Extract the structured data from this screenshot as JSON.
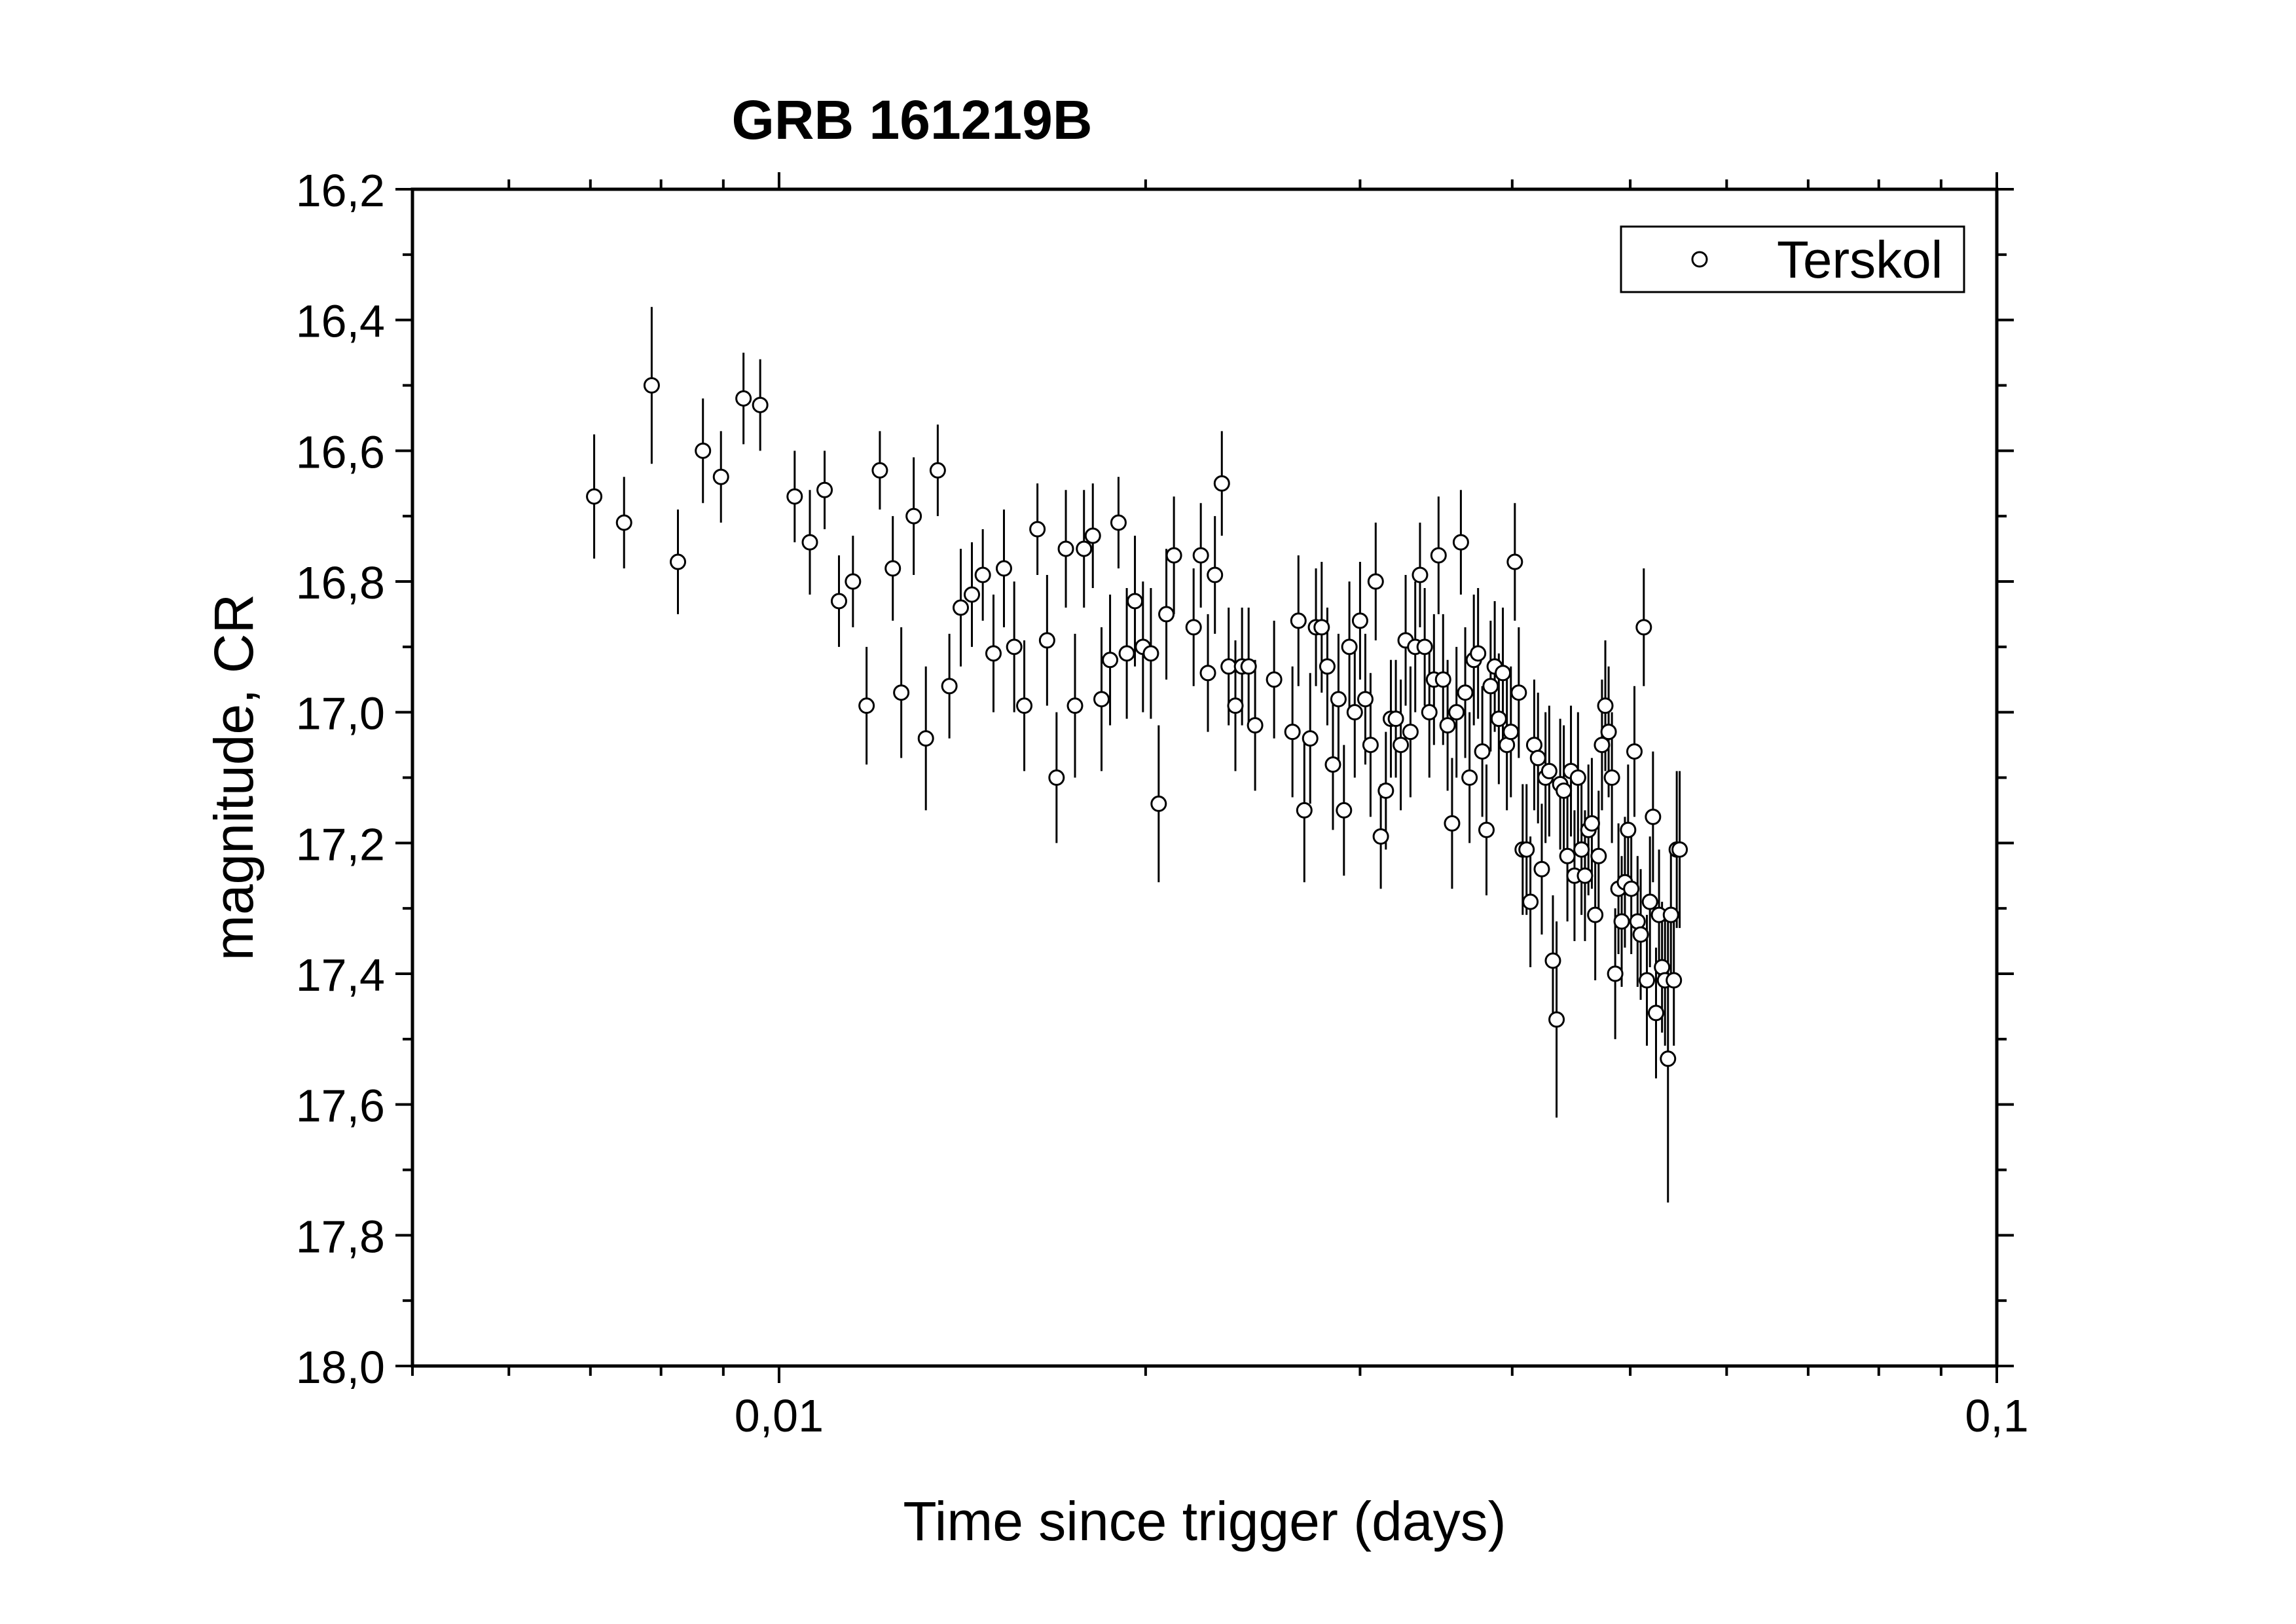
{
  "chart_data": {
    "type": "scatter",
    "title": "GRB 161219B",
    "xlabel": "Time since trigger (days)",
    "ylabel": "magnitude, CR",
    "x_scale": "log",
    "xlim": [
      0.005,
      0.1
    ],
    "ylim": [
      16.2,
      18.0
    ],
    "y_inverted": true,
    "x_ticks": [
      "0,01",
      "0,1"
    ],
    "y_ticks": [
      "16,2",
      "16,4",
      "16,6",
      "16,8",
      "17,0",
      "17,2",
      "17,4",
      "17,6",
      "17,8",
      "18,0"
    ],
    "grid": false,
    "legend_position": "top-right",
    "series": [
      {
        "name": "Terskol",
        "marker": "open-circle",
        "color": "#000000",
        "points": [
          [
            0.00705,
            16.67,
            0.095
          ],
          [
            0.00746,
            16.71,
            0.07
          ],
          [
            0.00786,
            16.5,
            0.12
          ],
          [
            0.00826,
            16.77,
            0.08
          ],
          [
            0.00866,
            16.6,
            0.08
          ],
          [
            0.00896,
            16.64,
            0.07
          ],
          [
            0.00935,
            16.52,
            0.07
          ],
          [
            0.00965,
            16.53,
            0.07
          ],
          [
            0.0103,
            16.67,
            0.07
          ],
          [
            0.0106,
            16.74,
            0.08
          ],
          [
            0.0109,
            16.66,
            0.06
          ],
          [
            0.0112,
            16.83,
            0.07
          ],
          [
            0.0115,
            16.8,
            0.07
          ],
          [
            0.0118,
            16.99,
            0.09
          ],
          [
            0.0121,
            16.63,
            0.06
          ],
          [
            0.0124,
            16.78,
            0.08
          ],
          [
            0.0126,
            16.97,
            0.1
          ],
          [
            0.0129,
            16.7,
            0.09
          ],
          [
            0.0132,
            17.04,
            0.11
          ],
          [
            0.0135,
            16.63,
            0.07
          ],
          [
            0.0138,
            16.96,
            0.08
          ],
          [
            0.0141,
            16.84,
            0.09
          ],
          [
            0.0144,
            16.82,
            0.08
          ],
          [
            0.0147,
            16.79,
            0.07
          ],
          [
            0.015,
            16.91,
            0.09
          ],
          [
            0.0153,
            16.78,
            0.09
          ],
          [
            0.0156,
            16.9,
            0.1
          ],
          [
            0.0159,
            16.99,
            0.1
          ],
          [
            0.0163,
            16.72,
            0.07
          ],
          [
            0.0166,
            16.89,
            0.1
          ],
          [
            0.0169,
            17.1,
            0.1
          ],
          [
            0.0172,
            16.75,
            0.09
          ],
          [
            0.0175,
            16.99,
            0.11
          ],
          [
            0.0178,
            16.75,
            0.09
          ],
          [
            0.0181,
            16.73,
            0.08
          ],
          [
            0.0184,
            16.98,
            0.11
          ],
          [
            0.0187,
            16.92,
            0.1
          ],
          [
            0.019,
            16.71,
            0.07
          ],
          [
            0.0193,
            16.91,
            0.1
          ],
          [
            0.0196,
            16.83,
            0.1
          ],
          [
            0.0199,
            16.9,
            0.1
          ],
          [
            0.0202,
            16.91,
            0.1
          ],
          [
            0.0205,
            17.14,
            0.12
          ],
          [
            0.0208,
            16.85,
            0.1
          ],
          [
            0.0211,
            16.76,
            0.09
          ],
          [
            0.0219,
            16.87,
            0.09
          ],
          [
            0.0222,
            16.76,
            0.08
          ],
          [
            0.0225,
            16.94,
            0.09
          ],
          [
            0.0228,
            16.79,
            0.09
          ],
          [
            0.0231,
            16.65,
            0.08
          ],
          [
            0.0234,
            16.93,
            0.09
          ],
          [
            0.0237,
            16.99,
            0.1
          ],
          [
            0.024,
            16.93,
            0.09
          ],
          [
            0.0243,
            16.93,
            0.09
          ],
          [
            0.0246,
            17.02,
            0.1
          ],
          [
            0.0255,
            16.95,
            0.09
          ],
          [
            0.0264,
            17.03,
            0.1
          ],
          [
            0.0267,
            16.86,
            0.1
          ],
          [
            0.027,
            17.15,
            0.11
          ],
          [
            0.0273,
            17.04,
            0.1
          ],
          [
            0.0276,
            16.87,
            0.09
          ],
          [
            0.0279,
            16.87,
            0.1
          ],
          [
            0.0282,
            16.93,
            0.09
          ],
          [
            0.0285,
            17.08,
            0.1
          ],
          [
            0.0288,
            16.98,
            0.1
          ],
          [
            0.0291,
            17.15,
            0.1
          ],
          [
            0.0294,
            16.9,
            0.1
          ],
          [
            0.0297,
            17.0,
            0.1
          ],
          [
            0.03,
            16.86,
            0.09
          ],
          [
            0.0303,
            16.98,
            0.1
          ],
          [
            0.0306,
            17.05,
            0.11
          ],
          [
            0.0309,
            16.8,
            0.09
          ],
          [
            0.0312,
            17.19,
            0.08
          ],
          [
            0.0315,
            17.12,
            0.09
          ],
          [
            0.0318,
            17.01,
            0.09
          ],
          [
            0.0321,
            17.01,
            0.09
          ],
          [
            0.0324,
            17.05,
            0.1
          ],
          [
            0.0327,
            16.89,
            0.1
          ],
          [
            0.033,
            17.03,
            0.1
          ],
          [
            0.0333,
            16.9,
            0.1
          ],
          [
            0.0336,
            16.79,
            0.08
          ],
          [
            0.0339,
            16.9,
            0.09
          ],
          [
            0.0342,
            17.0,
            0.1
          ],
          [
            0.0345,
            16.95,
            0.1
          ],
          [
            0.0348,
            16.76,
            0.09
          ],
          [
            0.0351,
            16.95,
            0.1
          ],
          [
            0.0354,
            17.02,
            0.1
          ],
          [
            0.0357,
            17.17,
            0.1
          ],
          [
            0.036,
            17.0,
            0.1
          ],
          [
            0.0363,
            16.74,
            0.08
          ],
          [
            0.0366,
            16.97,
            0.1
          ],
          [
            0.0369,
            17.1,
            0.1
          ],
          [
            0.0372,
            16.92,
            0.1
          ],
          [
            0.0375,
            16.91,
            0.1
          ],
          [
            0.0378,
            17.06,
            0.1
          ],
          [
            0.0381,
            17.18,
            0.1
          ],
          [
            0.0384,
            16.96,
            0.1
          ],
          [
            0.0387,
            16.93,
            0.1
          ],
          [
            0.039,
            17.01,
            0.1
          ],
          [
            0.0393,
            16.94,
            0.1
          ],
          [
            0.0396,
            17.05,
            0.1
          ],
          [
            0.0399,
            17.03,
            0.1
          ],
          [
            0.0402,
            16.77,
            0.09
          ],
          [
            0.0405,
            16.97,
            0.1
          ],
          [
            0.0408,
            17.21,
            0.1
          ],
          [
            0.0411,
            17.21,
            0.1
          ],
          [
            0.0414,
            17.29,
            0.1
          ],
          [
            0.0417,
            17.05,
            0.1
          ],
          [
            0.042,
            17.07,
            0.1
          ],
          [
            0.0423,
            17.24,
            0.1
          ],
          [
            0.0426,
            17.1,
            0.1
          ],
          [
            0.0429,
            17.09,
            0.1
          ],
          [
            0.0432,
            17.38,
            0.1
          ],
          [
            0.0435,
            17.47,
            0.15
          ],
          [
            0.0438,
            17.11,
            0.1
          ],
          [
            0.0441,
            17.12,
            0.1
          ],
          [
            0.0444,
            17.22,
            0.1
          ],
          [
            0.0447,
            17.09,
            0.1
          ],
          [
            0.045,
            17.25,
            0.1
          ],
          [
            0.0453,
            17.1,
            0.1
          ],
          [
            0.0456,
            17.21,
            0.1
          ],
          [
            0.0459,
            17.25,
            0.1
          ],
          [
            0.0462,
            17.18,
            0.1
          ],
          [
            0.0465,
            17.17,
            0.1
          ],
          [
            0.0468,
            17.31,
            0.1
          ],
          [
            0.0471,
            17.22,
            0.1
          ],
          [
            0.0474,
            17.05,
            0.1
          ],
          [
            0.0477,
            16.99,
            0.1
          ],
          [
            0.048,
            17.03,
            0.1
          ],
          [
            0.0483,
            17.1,
            0.1
          ],
          [
            0.0486,
            17.4,
            0.1
          ],
          [
            0.0489,
            17.27,
            0.1
          ],
          [
            0.0492,
            17.32,
            0.1
          ],
          [
            0.0495,
            17.26,
            0.1
          ],
          [
            0.0498,
            17.18,
            0.1
          ],
          [
            0.0501,
            17.27,
            0.1
          ],
          [
            0.0504,
            17.06,
            0.1
          ],
          [
            0.0507,
            17.32,
            0.1
          ],
          [
            0.051,
            17.34,
            0.1
          ],
          [
            0.0513,
            16.87,
            0.09
          ],
          [
            0.0516,
            17.41,
            0.1
          ],
          [
            0.0519,
            17.29,
            0.1
          ],
          [
            0.0522,
            17.16,
            0.1
          ],
          [
            0.0525,
            17.46,
            0.1
          ],
          [
            0.0528,
            17.31,
            0.1
          ],
          [
            0.0531,
            17.39,
            0.1
          ],
          [
            0.0534,
            17.41,
            0.1
          ],
          [
            0.0537,
            17.53,
            0.22
          ],
          [
            0.054,
            17.31,
            0.1
          ],
          [
            0.0543,
            17.41,
            0.1
          ],
          [
            0.0546,
            17.21,
            0.12
          ],
          [
            0.0549,
            17.21,
            0.12
          ]
        ]
      }
    ]
  }
}
